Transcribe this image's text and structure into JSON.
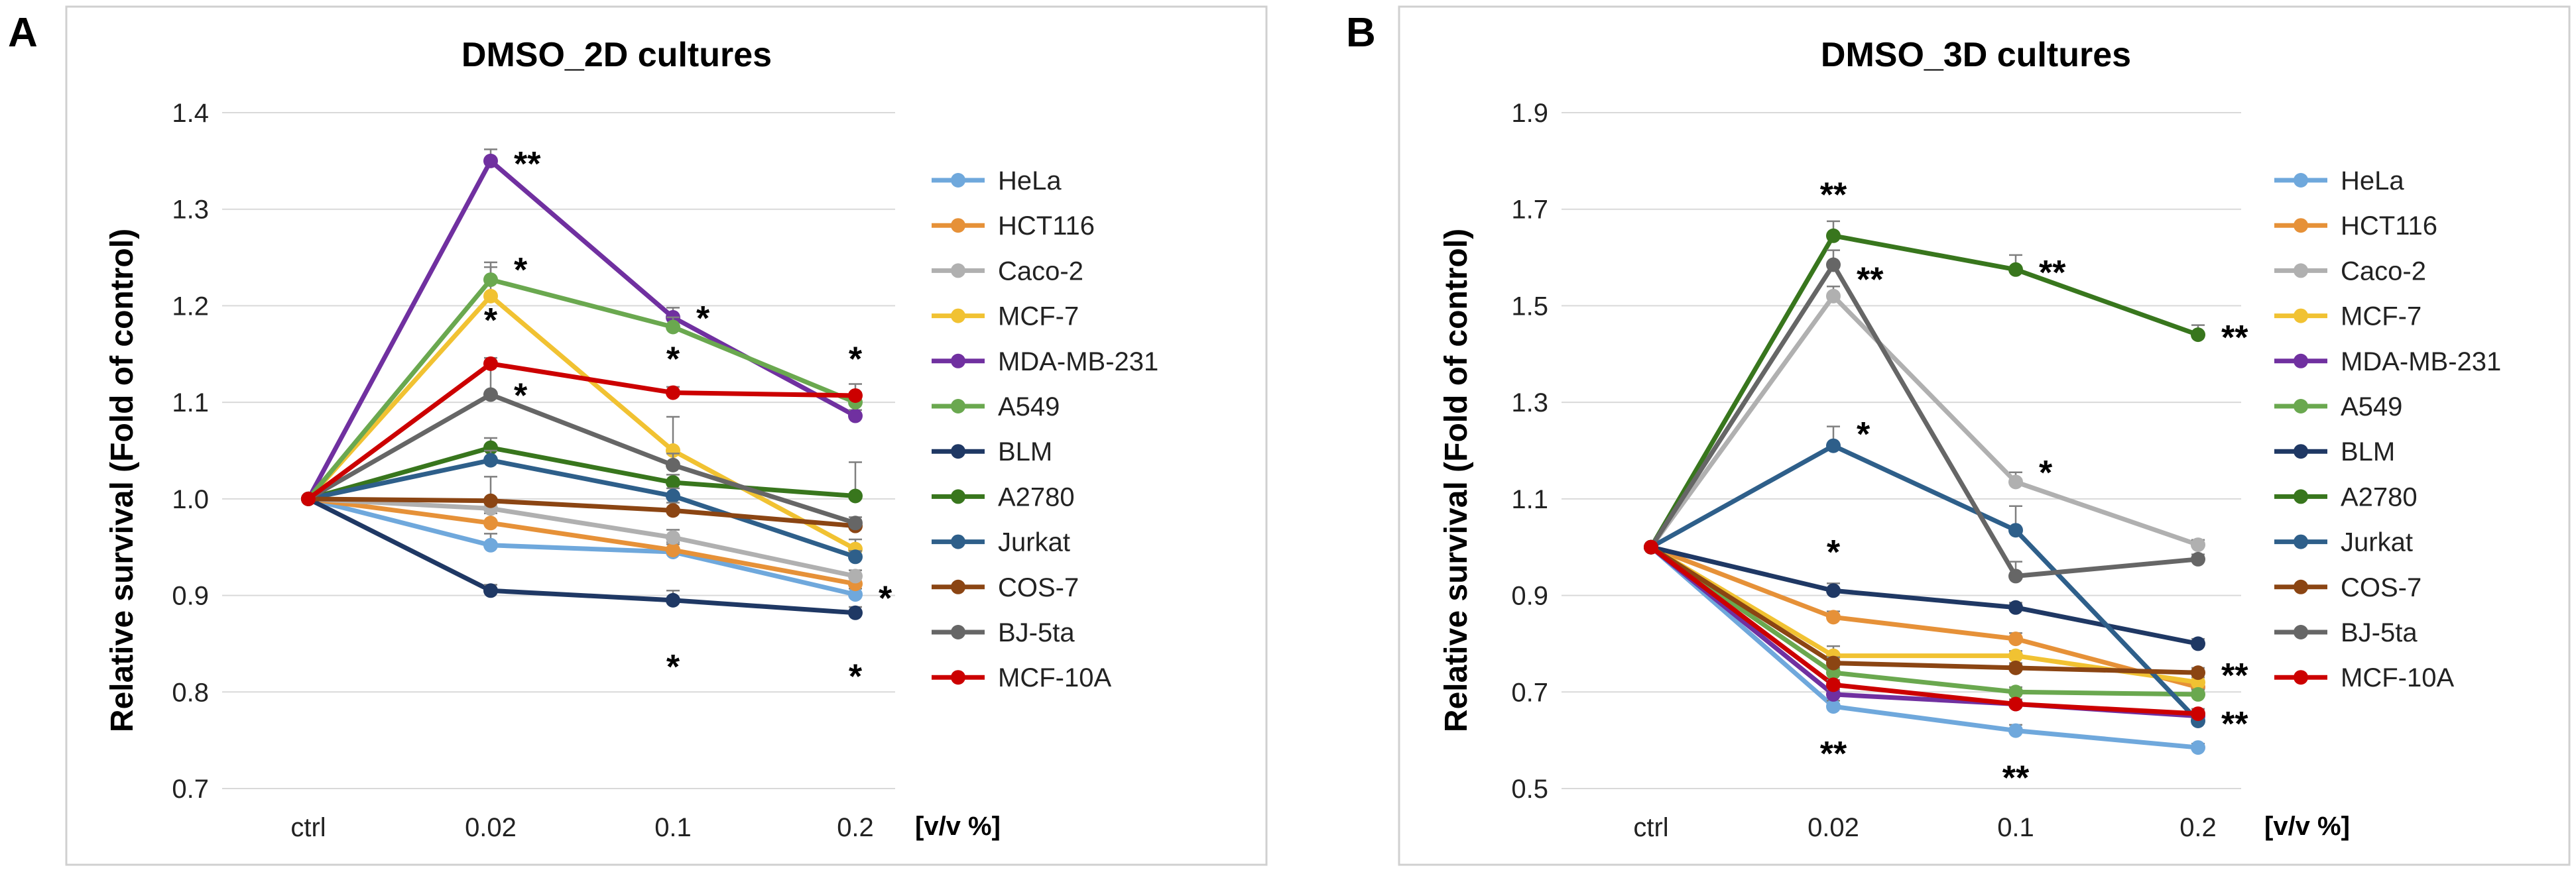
{
  "chart_data": [
    {
      "type": "line",
      "panel": "A",
      "title": "DMSO_2D cultures",
      "xlabel": "[v/v %]",
      "ylabel": "Relative survival (Fold of control)",
      "categories": [
        "ctrl",
        "0.02",
        "0.1",
        "0.2"
      ],
      "ylim": [
        0.7,
        1.4
      ],
      "yticks": [
        "0.7",
        "0.8",
        "0.9",
        "1.0",
        "1.1",
        "1.2",
        "1.3",
        "1.4"
      ],
      "grid": true,
      "legend_position": "right",
      "series": [
        {
          "name": "HeLa",
          "color": "#6fa8dc",
          "values": [
            1.0,
            0.952,
            0.945,
            0.901
          ],
          "errors": [
            0,
            0.012,
            0.008,
            0.006
          ]
        },
        {
          "name": "HCT116",
          "color": "#e69138",
          "values": [
            1.0,
            0.975,
            0.947,
            0.912
          ],
          "errors": [
            0,
            0.01,
            0.008,
            0.006
          ]
        },
        {
          "name": "Caco-2",
          "color": "#b0b0b0",
          "values": [
            1.0,
            0.99,
            0.96,
            0.92
          ],
          "errors": [
            0,
            0.01,
            0.008,
            0.006
          ]
        },
        {
          "name": "MCF-7",
          "color": "#f1c232",
          "values": [
            1.0,
            1.21,
            1.05,
            0.948
          ],
          "errors": [
            0,
            0.03,
            0.035,
            0.01
          ]
        },
        {
          "name": "MDA-MB-231",
          "color": "#7030a0",
          "values": [
            1.0,
            1.35,
            1.188,
            1.086
          ],
          "errors": [
            0,
            0.012,
            0.01,
            0.006
          ]
        },
        {
          "name": "A549",
          "color": "#6aa84f",
          "values": [
            1.0,
            1.227,
            1.178,
            1.1
          ],
          "errors": [
            0,
            0.018,
            0.01,
            0.01
          ]
        },
        {
          "name": "BLM",
          "color": "#1f3864",
          "values": [
            1.0,
            0.905,
            0.895,
            0.882
          ],
          "errors": [
            0,
            0.006,
            0.01,
            0.006
          ]
        },
        {
          "name": "A2780",
          "color": "#38761d",
          "values": [
            1.0,
            1.053,
            1.017,
            1.003
          ],
          "errors": [
            0,
            0.01,
            0.008,
            0.035
          ]
        },
        {
          "name": "Jurkat",
          "color": "#2e5f8a",
          "values": [
            1.0,
            1.04,
            1.003,
            0.94
          ],
          "errors": [
            0,
            0.01,
            0.008,
            0.006
          ]
        },
        {
          "name": "COS-7",
          "color": "#8b4513",
          "values": [
            1.0,
            0.998,
            0.988,
            0.972
          ],
          "errors": [
            0,
            0.025,
            0.008,
            0.006
          ]
        },
        {
          "name": "BJ-5ta",
          "color": "#666666",
          "values": [
            1.0,
            1.108,
            1.035,
            0.975
          ],
          "errors": [
            0,
            0.03,
            0.012,
            0.006
          ]
        },
        {
          "name": "MCF-10A",
          "color": "#cc0000",
          "values": [
            1.0,
            1.14,
            1.11,
            1.107
          ],
          "errors": [
            0,
            0.006,
            0.006,
            0.012
          ]
        }
      ],
      "annotations": [
        {
          "text": "**",
          "x": "0.02",
          "y": 1.35,
          "side": "right"
        },
        {
          "text": "*",
          "x": "0.02",
          "y": 1.24,
          "side": "right"
        },
        {
          "text": "*",
          "x": "0.02",
          "y": 1.17,
          "side": "above"
        },
        {
          "text": "*",
          "x": "0.02",
          "y": 1.11,
          "side": "right"
        },
        {
          "text": "*",
          "x": "0.1",
          "y": 1.19,
          "side": "right"
        },
        {
          "text": "*",
          "x": "0.1",
          "y": 1.13,
          "side": "above"
        },
        {
          "text": "*",
          "x": "0.1",
          "y": 0.84,
          "side": "below"
        },
        {
          "text": "*",
          "x": "0.2",
          "y": 1.13,
          "side": "above"
        },
        {
          "text": "*",
          "x": "0.2",
          "y": 0.9,
          "side": "right"
        },
        {
          "text": "*",
          "x": "0.2",
          "y": 0.83,
          "side": "below"
        }
      ]
    },
    {
      "type": "line",
      "panel": "B",
      "title": "DMSO_3D cultures",
      "xlabel": "[v/v %]",
      "ylabel": "Relative survival (Fold of control)",
      "categories": [
        "ctrl",
        "0.02",
        "0.1",
        "0.2"
      ],
      "ylim": [
        0.5,
        1.9
      ],
      "yticks": [
        "0.5",
        "0.7",
        "0.9",
        "1.1",
        "1.3",
        "1.5",
        "1.7",
        "1.9"
      ],
      "grid": true,
      "legend_position": "right",
      "series": [
        {
          "name": "HeLa",
          "color": "#6fa8dc",
          "values": [
            1.0,
            0.67,
            0.62,
            0.585
          ],
          "errors": [
            0,
            0.012,
            0.012,
            0.008
          ]
        },
        {
          "name": "HCT116",
          "color": "#e69138",
          "values": [
            1.0,
            0.855,
            0.81,
            0.71
          ],
          "errors": [
            0,
            0.012,
            0.012,
            0.01
          ]
        },
        {
          "name": "Caco-2",
          "color": "#b0b0b0",
          "values": [
            1.0,
            1.52,
            1.135,
            1.005
          ],
          "errors": [
            0,
            0.02,
            0.02,
            0.01
          ]
        },
        {
          "name": "MCF-7",
          "color": "#f1c232",
          "values": [
            1.0,
            0.775,
            0.775,
            0.72
          ],
          "errors": [
            0,
            0.02,
            0.01,
            0.01
          ]
        },
        {
          "name": "MDA-MB-231",
          "color": "#7030a0",
          "values": [
            1.0,
            0.695,
            0.675,
            0.65
          ],
          "errors": [
            0,
            0.01,
            0.01,
            0.01
          ]
        },
        {
          "name": "A549",
          "color": "#6aa84f",
          "values": [
            1.0,
            0.74,
            0.7,
            0.695
          ],
          "errors": [
            0,
            0.01,
            0.01,
            0.01
          ]
        },
        {
          "name": "BLM",
          "color": "#1f3864",
          "values": [
            1.0,
            0.91,
            0.875,
            0.8
          ],
          "errors": [
            0,
            0.015,
            0.01,
            0.01
          ]
        },
        {
          "name": "A2780",
          "color": "#38761d",
          "values": [
            1.0,
            1.645,
            1.575,
            1.44
          ],
          "errors": [
            0,
            0.03,
            0.03,
            0.02
          ]
        },
        {
          "name": "Jurkat",
          "color": "#2e5f8a",
          "values": [
            1.0,
            1.21,
            1.035,
            0.64
          ],
          "errors": [
            0,
            0.04,
            0.05,
            0.01
          ]
        },
        {
          "name": "COS-7",
          "color": "#8b4513",
          "values": [
            1.0,
            0.76,
            0.75,
            0.74
          ],
          "errors": [
            0,
            0.012,
            0.01,
            0.01
          ]
        },
        {
          "name": "BJ-5ta",
          "color": "#666666",
          "values": [
            1.0,
            1.585,
            0.94,
            0.975
          ],
          "errors": [
            0,
            0.03,
            0.03,
            0.01
          ]
        },
        {
          "name": "MCF-10A",
          "color": "#cc0000",
          "values": [
            1.0,
            0.715,
            0.675,
            0.655
          ],
          "errors": [
            0,
            0.01,
            0.01,
            0.01
          ]
        }
      ],
      "annotations": [
        {
          "text": "**",
          "x": "0.02",
          "y": 1.7,
          "side": "above"
        },
        {
          "text": "**",
          "x": "0.02",
          "y": 1.56,
          "side": "right"
        },
        {
          "text": "*",
          "x": "0.02",
          "y": 1.24,
          "side": "right"
        },
        {
          "text": "*",
          "x": "0.02",
          "y": 0.96,
          "side": "above"
        },
        {
          "text": "**",
          "x": "0.02",
          "y": 0.6,
          "side": "below"
        },
        {
          "text": "**",
          "x": "0.1",
          "y": 1.575,
          "side": "right"
        },
        {
          "text": "*",
          "x": "0.1",
          "y": 1.16,
          "side": "right"
        },
        {
          "text": "**",
          "x": "0.1",
          "y": 0.55,
          "side": "below"
        },
        {
          "text": "**",
          "x": "0.2",
          "y": 1.44,
          "side": "right"
        },
        {
          "text": "**",
          "x": "0.2",
          "y": 0.74,
          "side": "right"
        },
        {
          "text": "**",
          "x": "0.2",
          "y": 0.64,
          "side": "right"
        }
      ]
    }
  ]
}
